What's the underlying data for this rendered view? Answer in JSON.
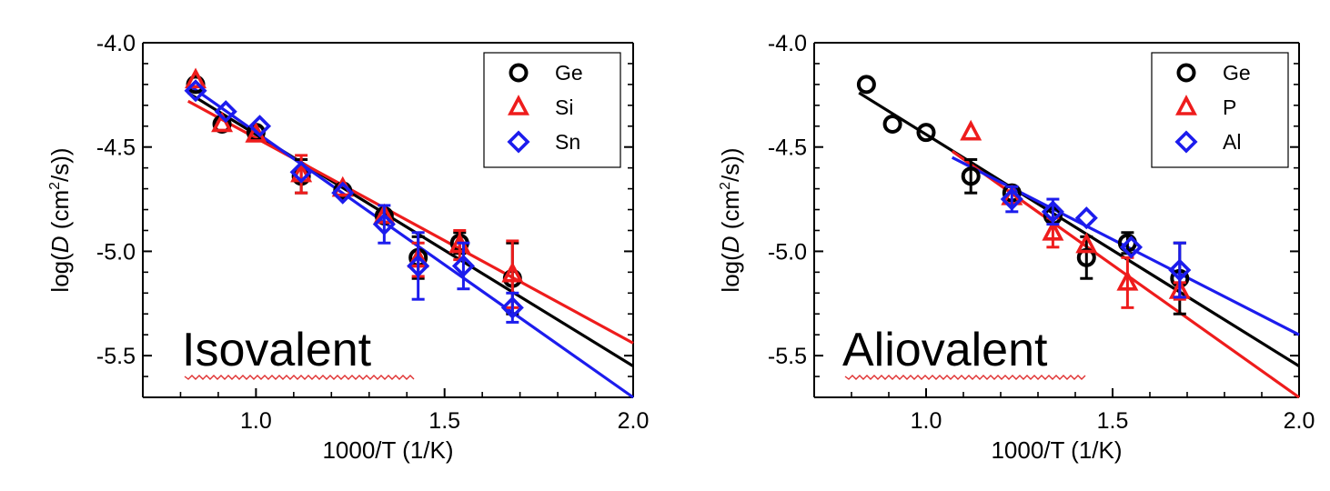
{
  "chart_data": [
    {
      "type": "scatter",
      "title": "Isovalent",
      "xlabel": "1000/T (1/K)",
      "ylabel": "log(D (cm^2/s))",
      "xlim": [
        0.7,
        2.0
      ],
      "ylim": [
        -5.7,
        -4.0
      ],
      "xticks": [
        "1.0",
        "1.5",
        "2.0"
      ],
      "yticks": [
        "-4.0",
        "-4.5",
        "-5.0",
        "-5.5"
      ],
      "legend": "top-right",
      "series": [
        {
          "name": "Ge",
          "color": "#000000",
          "marker": "circle",
          "points": [
            {
              "x": 0.84,
              "y": -4.2,
              "err": 0.0
            },
            {
              "x": 0.91,
              "y": -4.39,
              "err": 0.0
            },
            {
              "x": 1.0,
              "y": -4.43,
              "err": 0.0
            },
            {
              "x": 1.12,
              "y": -4.64,
              "err": 0.08
            },
            {
              "x": 1.23,
              "y": -4.71,
              "err": 0.0
            },
            {
              "x": 1.34,
              "y": -4.83,
              "err": 0.0
            },
            {
              "x": 1.43,
              "y": -5.03,
              "err": 0.1
            },
            {
              "x": 1.54,
              "y": -4.96,
              "err": 0.05
            },
            {
              "x": 1.68,
              "y": -5.13,
              "err": 0.17
            }
          ],
          "fit": [
            [
              0.82,
              -4.24
            ],
            [
              2.0,
              -5.55
            ]
          ]
        },
        {
          "name": "Si",
          "color": "#ee1c1c",
          "marker": "triangle",
          "points": [
            {
              "x": 0.84,
              "y": -4.18,
              "err": 0.0
            },
            {
              "x": 0.91,
              "y": -4.39,
              "err": 0.0
            },
            {
              "x": 1.0,
              "y": -4.44,
              "err": 0.0
            },
            {
              "x": 1.12,
              "y": -4.63,
              "err": 0.09
            },
            {
              "x": 1.23,
              "y": -4.7,
              "err": 0.0
            },
            {
              "x": 1.34,
              "y": -4.83,
              "err": 0.0
            },
            {
              "x": 1.43,
              "y": -5.04,
              "err": 0.08
            },
            {
              "x": 1.54,
              "y": -4.97,
              "err": 0.07
            },
            {
              "x": 1.68,
              "y": -5.11,
              "err": 0.16
            }
          ],
          "fit": [
            [
              0.82,
              -4.28
            ],
            [
              2.0,
              -5.44
            ]
          ]
        },
        {
          "name": "Sn",
          "color": "#1c1ced",
          "marker": "diamond",
          "points": [
            {
              "x": 0.84,
              "y": -4.23,
              "err": 0.0
            },
            {
              "x": 0.92,
              "y": -4.33,
              "err": 0.0
            },
            {
              "x": 1.01,
              "y": -4.4,
              "err": 0.0
            },
            {
              "x": 1.12,
              "y": -4.62,
              "err": 0.0
            },
            {
              "x": 1.23,
              "y": -4.72,
              "err": 0.0
            },
            {
              "x": 1.34,
              "y": -4.87,
              "err": 0.09
            },
            {
              "x": 1.43,
              "y": -5.07,
              "err": 0.16
            },
            {
              "x": 1.55,
              "y": -5.07,
              "err": 0.11
            },
            {
              "x": 1.68,
              "y": -5.27,
              "err": 0.07
            }
          ],
          "fit": [
            [
              0.82,
              -4.2
            ],
            [
              2.0,
              -5.7
            ]
          ]
        }
      ]
    },
    {
      "type": "scatter",
      "title": "Aliovalent",
      "xlabel": "1000/T (1/K)",
      "ylabel": "log(D (cm^2/s))",
      "xlim": [
        0.7,
        2.0
      ],
      "ylim": [
        -5.7,
        -4.0
      ],
      "xticks": [
        "1.0",
        "1.5",
        "2.0"
      ],
      "yticks": [
        "-4.0",
        "-4.5",
        "-5.0",
        "-5.5"
      ],
      "legend": "top-right",
      "series": [
        {
          "name": "Ge",
          "color": "#000000",
          "marker": "circle",
          "points": [
            {
              "x": 0.84,
              "y": -4.2,
              "err": 0.0
            },
            {
              "x": 0.91,
              "y": -4.39,
              "err": 0.0
            },
            {
              "x": 1.0,
              "y": -4.43,
              "err": 0.0
            },
            {
              "x": 1.12,
              "y": -4.64,
              "err": 0.08
            },
            {
              "x": 1.23,
              "y": -4.72,
              "err": 0.0
            },
            {
              "x": 1.34,
              "y": -4.83,
              "err": 0.0
            },
            {
              "x": 1.43,
              "y": -5.03,
              "err": 0.1
            },
            {
              "x": 1.54,
              "y": -4.96,
              "err": 0.05
            },
            {
              "x": 1.68,
              "y": -5.13,
              "err": 0.17
            }
          ],
          "fit": [
            [
              0.82,
              -4.24
            ],
            [
              2.0,
              -5.55
            ]
          ]
        },
        {
          "name": "P",
          "color": "#ee1c1c",
          "marker": "triangle",
          "points": [
            {
              "x": 1.12,
              "y": -4.43,
              "err": 0.0
            },
            {
              "x": 1.23,
              "y": -4.74,
              "err": 0.0
            },
            {
              "x": 1.34,
              "y": -4.91,
              "err": 0.07
            },
            {
              "x": 1.43,
              "y": -4.97,
              "err": 0.0
            },
            {
              "x": 1.54,
              "y": -5.15,
              "err": 0.12
            },
            {
              "x": 1.68,
              "y": -5.19,
              "err": 0.04
            }
          ],
          "fit": [
            [
              1.07,
              -4.52
            ],
            [
              2.0,
              -5.7
            ]
          ]
        },
        {
          "name": "Al",
          "color": "#1c1ced",
          "marker": "diamond",
          "points": [
            {
              "x": 1.23,
              "y": -4.75,
              "err": 0.06
            },
            {
              "x": 1.34,
              "y": -4.81,
              "err": 0.06
            },
            {
              "x": 1.43,
              "y": -4.84,
              "err": 0.0
            },
            {
              "x": 1.55,
              "y": -4.98,
              "err": 0.0
            },
            {
              "x": 1.68,
              "y": -5.09,
              "err": 0.13
            }
          ],
          "fit": [
            [
              1.07,
              -4.55
            ],
            [
              2.0,
              -5.4
            ]
          ]
        }
      ]
    }
  ]
}
